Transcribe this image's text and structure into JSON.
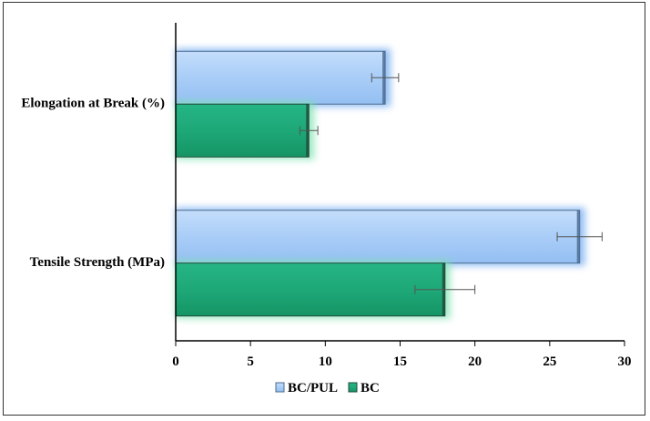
{
  "chart_data": {
    "type": "bar",
    "orientation": "horizontal",
    "categories": [
      "Elongation at Break (%)",
      "Tensile Strength (MPa)"
    ],
    "series": [
      {
        "name": "BC/PUL",
        "color": "#a9cdf7",
        "values": [
          14,
          27
        ],
        "errors": [
          0.9,
          1.5
        ]
      },
      {
        "name": "BC",
        "color": "#1ea878",
        "values": [
          8.9,
          18
        ],
        "errors": [
          0.6,
          2.0
        ]
      }
    ],
    "xlim": [
      0,
      30
    ],
    "xticks": [
      0,
      5,
      10,
      15,
      20,
      25,
      30
    ],
    "title": "",
    "xlabel": "",
    "ylabel": "",
    "legend": "bottom",
    "grid": false
  }
}
